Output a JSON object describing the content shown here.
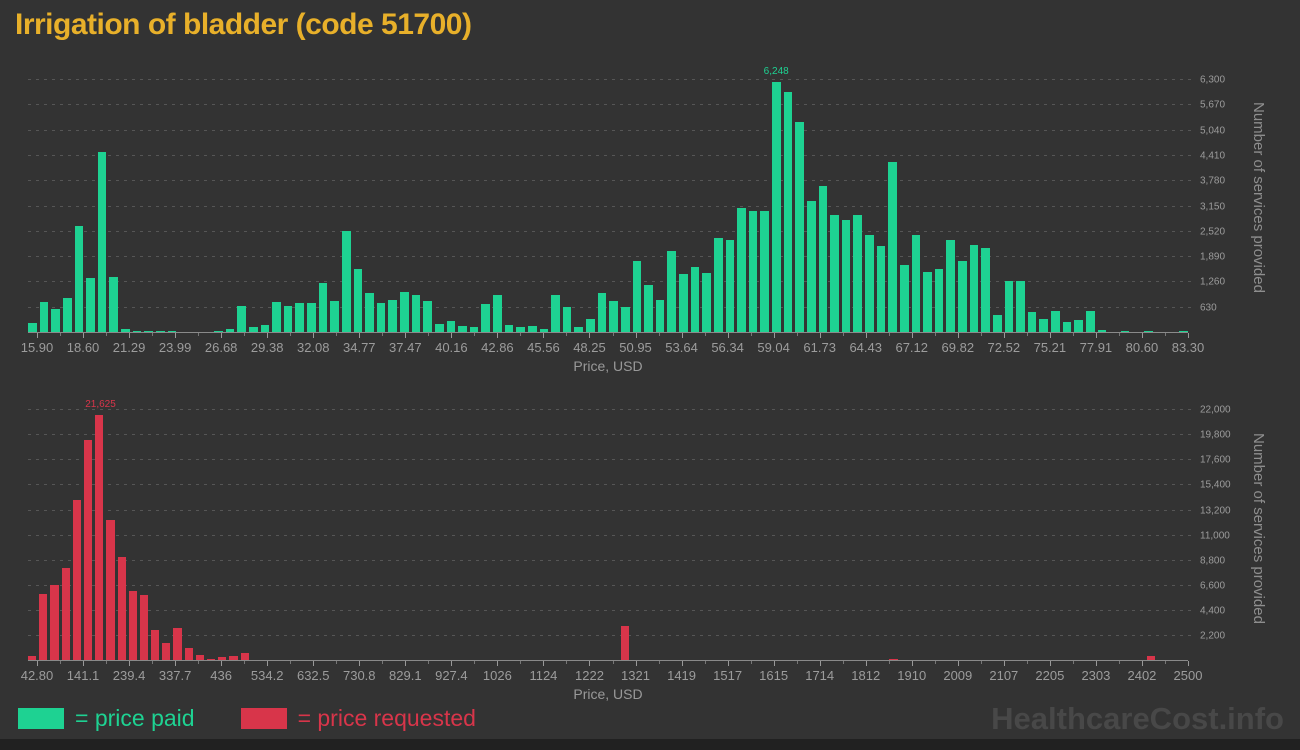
{
  "page": {
    "title": "Irrigation of bladder (code 51700)",
    "title_color": "#e8b02a",
    "background_color": "#333333",
    "watermark": "HealthcareCost.info",
    "watermark_color": "#484848",
    "footer_strip_color": "#212121"
  },
  "legend": {
    "items": [
      {
        "label": "= price paid",
        "color": "#1ed292"
      },
      {
        "label": "= price requested",
        "color": "#d8354a"
      }
    ]
  },
  "chart_data": [
    {
      "type": "bar",
      "series_name": "price paid",
      "bar_color": "#1ed292",
      "xlabel": "Price, USD",
      "ylabel": "Number of services provided",
      "y_axis_side": "right",
      "grid": "dashed-horizontal",
      "x_range": [
        15.9,
        83.3
      ],
      "n_bins": 100,
      "bin_width": 0.674,
      "ylim": [
        0,
        6750
      ],
      "peak_label": "6,248",
      "x_ticks": [
        "15.90",
        "18.60",
        "21.29",
        "23.99",
        "26.68",
        "29.38",
        "32.08",
        "34.77",
        "37.47",
        "40.16",
        "42.86",
        "45.56",
        "48.25",
        "50.95",
        "53.64",
        "56.34",
        "59.04",
        "61.73",
        "64.43",
        "67.12",
        "69.82",
        "72.52",
        "75.21",
        "77.91",
        "80.60",
        "83.30"
      ],
      "y_tick_values": [
        630,
        1260,
        1890,
        2520,
        3150,
        3780,
        4410,
        5040,
        5670,
        6300
      ],
      "y_tick_labels": [
        "630",
        "1,260",
        "1,890",
        "2,520",
        "3,150",
        "3,780",
        "4,410",
        "5,040",
        "5,670",
        "6,300"
      ],
      "values": [
        250,
        780,
        590,
        880,
        2660,
        1360,
        4520,
        1390,
        90,
        55,
        50,
        45,
        55,
        0,
        35,
        0,
        45,
        90,
        670,
        140,
        210,
        770,
        670,
        760,
        760,
        1240,
        800,
        2545,
        1600,
        990,
        760,
        820,
        1010,
        940,
        800,
        235,
        295,
        170,
        150,
        715,
        950,
        210,
        150,
        170,
        100,
        950,
        645,
        150,
        360,
        985,
        800,
        645,
        1800,
        1200,
        815,
        2040,
        1480,
        1655,
        1500,
        2365,
        2315,
        3105,
        3035,
        3050,
        6248,
        6000,
        5250,
        3295,
        3655,
        2930,
        2810,
        2950,
        2430,
        2175,
        4270,
        1700,
        2435,
        1510,
        1600,
        2325,
        1790,
        2185,
        2125,
        460,
        1285,
        1285,
        520,
        355,
        560,
        270,
        320,
        560,
        85,
        0,
        40,
        0,
        40,
        0,
        0,
        40
      ]
    },
    {
      "type": "bar",
      "series_name": "price requested",
      "bar_color": "#d8354a",
      "xlabel": "Price, USD",
      "ylabel": "Number of services provided",
      "y_axis_side": "right",
      "grid": "dashed-horizontal",
      "x_range": [
        42.8,
        2500
      ],
      "n_bins": 104,
      "bin_width": 23.6,
      "ylim": [
        0,
        23250
      ],
      "peak_label": "21,625",
      "x_ticks": [
        "42.80",
        "141.1",
        "239.4",
        "337.7",
        "436",
        "534.2",
        "632.5",
        "730.8",
        "829.1",
        "927.4",
        "1026",
        "1124",
        "1222",
        "1321",
        "1419",
        "1517",
        "1615",
        "1714",
        "1812",
        "1910",
        "2009",
        "2107",
        "2205",
        "2303",
        "2402",
        "2500"
      ],
      "y_tick_values": [
        2200,
        4400,
        6600,
        8800,
        11000,
        13200,
        15400,
        17600,
        19800,
        22000
      ],
      "y_tick_labels": [
        "2,200",
        "4,400",
        "6,600",
        "8,800",
        "11,000",
        "13,200",
        "15,400",
        "17,600",
        "19,800",
        "22,000"
      ],
      "values": [
        440,
        5870,
        6660,
        8130,
        14170,
        19420,
        21625,
        12410,
        9090,
        6160,
        5780,
        2700,
        1610,
        2930,
        1170,
        530,
        205,
        350,
        440,
        730,
        90,
        0,
        0,
        90,
        60,
        0,
        70,
        75,
        90,
        90,
        60,
        0,
        0,
        0,
        0,
        0,
        0,
        0,
        50,
        0,
        0,
        70,
        0,
        0,
        0,
        0,
        0,
        0,
        0,
        0,
        0,
        0,
        0,
        3100,
        0,
        0,
        0,
        0,
        0,
        0,
        0,
        0,
        0,
        0,
        0,
        0,
        0,
        0,
        0,
        0,
        0,
        0,
        0,
        0,
        0,
        0,
        0,
        200,
        0,
        0,
        0,
        0,
        0,
        0,
        0,
        0,
        0,
        0,
        0,
        0,
        0,
        0,
        0,
        0,
        0,
        0,
        0,
        0,
        0,
        0,
        440,
        0,
        0,
        0
      ]
    }
  ]
}
